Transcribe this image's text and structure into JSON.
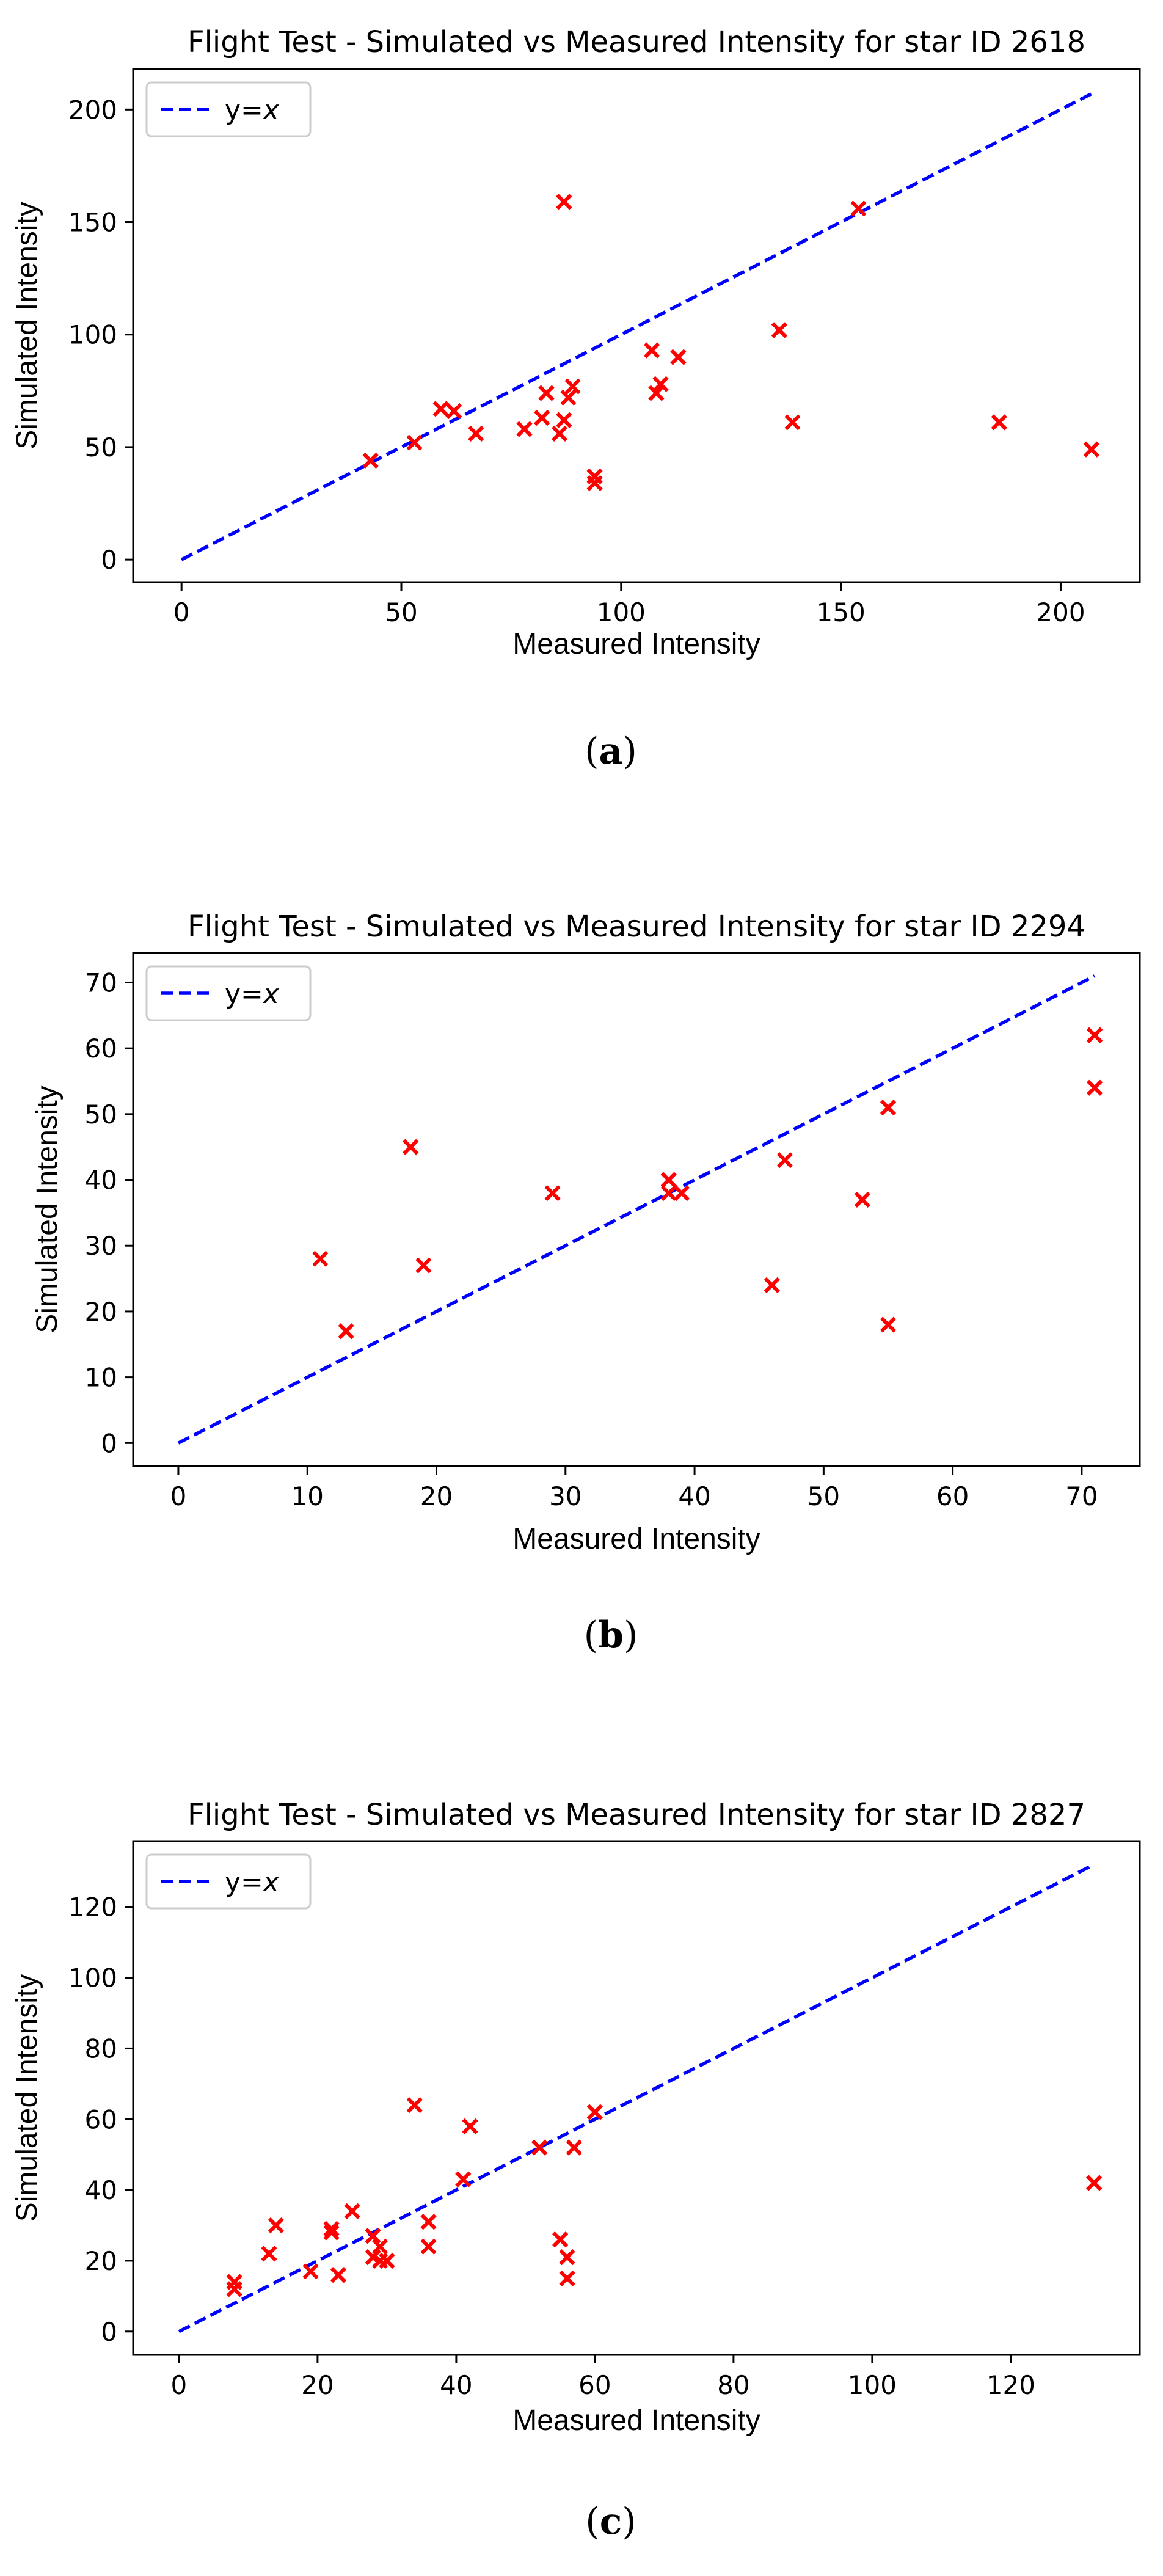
{
  "chart_data": [
    {
      "type": "scatter",
      "title": "Flight Test - Simulated vs Measured Intensity for star ID 2618",
      "xlabel": "Measured Intensity",
      "ylabel": "Simulated Intensity",
      "xlim": [
        -11,
        218
      ],
      "ylim": [
        -10,
        218
      ],
      "xticks": [
        0,
        50,
        100,
        150,
        200
      ],
      "yticks": [
        0,
        50,
        100,
        150,
        200
      ],
      "legend": {
        "label_prefix": "y=",
        "label_var": "x",
        "location": "upper left"
      },
      "ref_line": {
        "from": [
          0,
          0
        ],
        "to": [
          207,
          207
        ]
      },
      "points": {
        "x": [
          43,
          53,
          59,
          62,
          67,
          78,
          82,
          83,
          86,
          87,
          87,
          88,
          89,
          94,
          94,
          107,
          108,
          109,
          113,
          136,
          139,
          154,
          186,
          207
        ],
        "y": [
          44,
          52,
          67,
          66,
          56,
          58,
          63,
          74,
          56,
          159,
          62,
          72,
          77,
          37,
          34,
          93,
          74,
          78,
          90,
          102,
          61,
          156,
          61,
          49
        ]
      },
      "caption": {
        "open": "(",
        "letter": "a",
        "close": ")"
      }
    },
    {
      "type": "scatter",
      "title": "Flight Test - Simulated vs Measured Intensity for star ID 2294",
      "xlabel": "Measured Intensity",
      "ylabel": "Simulated Intensity",
      "xlim": [
        -3.5,
        74.5
      ],
      "ylim": [
        -3.5,
        74.5
      ],
      "xticks": [
        0,
        10,
        20,
        30,
        40,
        50,
        60,
        70
      ],
      "yticks": [
        0,
        10,
        20,
        30,
        40,
        50,
        60,
        70
      ],
      "legend": {
        "label_prefix": "y=",
        "label_var": "x",
        "location": "upper left"
      },
      "ref_line": {
        "from": [
          0,
          0
        ],
        "to": [
          71,
          71
        ]
      },
      "points": {
        "x": [
          11,
          13,
          18,
          19,
          29,
          38,
          38,
          39,
          46,
          47,
          53,
          55,
          55,
          71,
          71
        ],
        "y": [
          28,
          17,
          45,
          27,
          38,
          40,
          38,
          38,
          24,
          43,
          37,
          51,
          18,
          62,
          54
        ]
      },
      "caption": {
        "open": "(",
        "letter": "b",
        "close": ")"
      }
    },
    {
      "type": "scatter",
      "title": "Flight Test - Simulated vs Measured Intensity for star ID 2827",
      "xlabel": "Measured Intensity",
      "ylabel": "Simulated Intensity",
      "xlim": [
        -6.6,
        138.6
      ],
      "ylim": [
        -6.6,
        138.6
      ],
      "xticks": [
        0,
        20,
        40,
        60,
        80,
        100,
        120
      ],
      "yticks": [
        0,
        20,
        40,
        60,
        80,
        100,
        120
      ],
      "legend": {
        "label_prefix": "y=",
        "label_var": "x",
        "location": "upper left"
      },
      "ref_line": {
        "from": [
          0,
          0
        ],
        "to": [
          132,
          132
        ]
      },
      "points": {
        "x": [
          8,
          8,
          13,
          14,
          19,
          22,
          22,
          23,
          25,
          28,
          28,
          29,
          29,
          30,
          34,
          36,
          36,
          41,
          42,
          52,
          55,
          56,
          56,
          57,
          60,
          132
        ],
        "y": [
          14,
          12,
          22,
          30,
          17,
          29,
          28,
          16,
          34,
          21,
          27,
          24,
          20,
          20,
          64,
          31,
          24,
          43,
          58,
          52,
          26,
          21,
          15,
          52,
          62,
          42
        ]
      },
      "caption": {
        "open": "(",
        "letter": "c",
        "close": ")"
      }
    }
  ],
  "colors": {
    "line": "#0000ff",
    "marker": "#ff0000",
    "axis": "#000000"
  }
}
